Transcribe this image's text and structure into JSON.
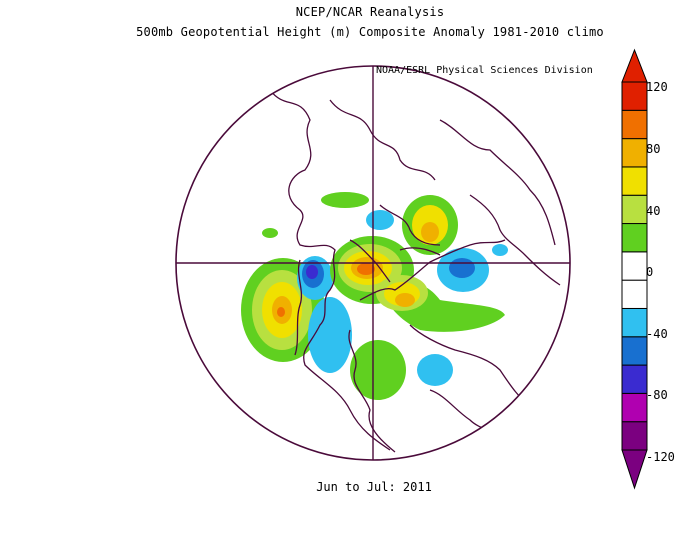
{
  "title_line1": "NCEP/NCAR Reanalysis",
  "title_line2": "500mb Geopotential Height (m) Composite Anomaly 1981-2010 climo",
  "credit": "NOAA/ESRL Physical Sciences Division",
  "period": "Jun to Jul: 2011",
  "colorbar": {
    "tick_labels": [
      "120",
      "80",
      "40",
      "0",
      "-40",
      "-80",
      "-120"
    ],
    "colors": [
      "#7b0080",
      "#b000b0",
      "#3a2bd0",
      "#1870d0",
      "#30c0f0",
      "#ffffff",
      "#ffffff",
      "#60d020",
      "#b8e040",
      "#f0e000",
      "#f0b000",
      "#f07000",
      "#e02000"
    ]
  },
  "map_layers": {
    "grid_color": "#4a0a3a",
    "coast_color": "#4a0a3a",
    "anomalies": [
      {
        "name": "anomaly-pos-center",
        "level": 80
      },
      {
        "name": "anomaly-pos-eurasia-north",
        "level": 60
      },
      {
        "name": "anomaly-pos-pacific",
        "level": 60
      },
      {
        "name": "anomaly-pos-siberia",
        "level": 70
      },
      {
        "name": "anomaly-neg-alaska",
        "level": -80
      },
      {
        "name": "anomaly-neg-east",
        "level": -60
      },
      {
        "name": "anomaly-neg-pacific-south",
        "level": -40
      },
      {
        "name": "anomaly-neg-atlantic",
        "level": -40
      },
      {
        "name": "anomaly-pos-canada",
        "level": 40
      }
    ]
  }
}
